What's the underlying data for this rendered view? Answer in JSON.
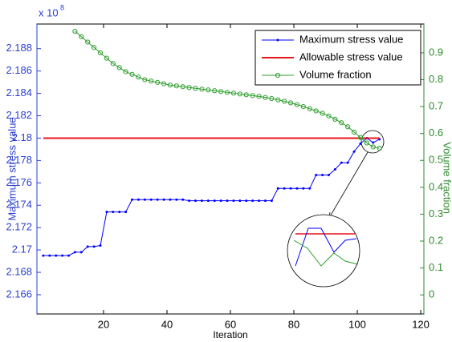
{
  "chart_data": {
    "type": "line",
    "x_label": "Iteration",
    "y_label": "Maximum stress value",
    "y2_label": "Volume fraction",
    "y_exponent_base": "x 10",
    "y_exponent": "8",
    "xlim": [
      -1,
      121
    ],
    "xticks": [
      20,
      40,
      60,
      80,
      100,
      120
    ],
    "ylim": [
      2.16428,
      2.1902
    ],
    "yticks": [
      2.166,
      2.168,
      2.17,
      2.172,
      2.174,
      2.176,
      2.178,
      2.18,
      2.182,
      2.184,
      2.186,
      2.188
    ],
    "y2lim": [
      -0.071,
      1.007
    ],
    "y2ticks": [
      0,
      0.1,
      0.2,
      0.3,
      0.4,
      0.5,
      0.6,
      0.7,
      0.8,
      0.9
    ],
    "y_color": "#2b3fd0",
    "y2_color": "#2e8b2e",
    "legend": "upper right",
    "series": [
      {
        "name": "Maximum stress value",
        "color": "#0000ff",
        "marker": "dot",
        "x": [
          1,
          3,
          5,
          7,
          9,
          11,
          13,
          15,
          17,
          19,
          21,
          23,
          25,
          27,
          29,
          31,
          33,
          35,
          37,
          39,
          41,
          43,
          45,
          47,
          49,
          51,
          53,
          55,
          57,
          59,
          61,
          63,
          65,
          67,
          69,
          71,
          73,
          75,
          77,
          79,
          81,
          83,
          85,
          87,
          89,
          91,
          93,
          95,
          97,
          99,
          101,
          103,
          105,
          107
        ],
        "values": [
          2.1695,
          2.1695,
          2.1695,
          2.1695,
          2.1695,
          2.1698,
          2.1698,
          2.1703,
          2.1703,
          2.1704,
          2.1734,
          2.1734,
          2.1734,
          2.1734,
          2.1745,
          2.1745,
          2.1745,
          2.1745,
          2.1745,
          2.1745,
          2.1745,
          2.1745,
          2.1745,
          2.1744,
          2.1744,
          2.1744,
          2.1744,
          2.1744,
          2.1744,
          2.1744,
          2.1744,
          2.1744,
          2.1744,
          2.1744,
          2.1744,
          2.1744,
          2.1744,
          2.1755,
          2.1755,
          2.1755,
          2.1755,
          2.1755,
          2.1755,
          2.1767,
          2.1767,
          2.1767,
          2.1772,
          2.1778,
          2.1778,
          2.1788,
          2.1795,
          2.18,
          2.1796,
          2.1799
        ]
      },
      {
        "name": "Allowable stress value",
        "color": "#e8141c",
        "marker": "none",
        "x": [
          1,
          107
        ],
        "values": [
          2.18,
          2.18
        ]
      },
      {
        "name": "Volume fraction",
        "color": "#2e9e2e",
        "marker": "circle",
        "axis": "y2",
        "x": [
          1,
          3,
          5,
          7,
          9,
          11,
          13,
          15,
          17,
          19,
          21,
          23,
          25,
          27,
          29,
          31,
          33,
          35,
          37,
          39,
          41,
          43,
          45,
          47,
          49,
          51,
          53,
          55,
          57,
          59,
          61,
          63,
          65,
          67,
          69,
          71,
          73,
          75,
          77,
          79,
          81,
          83,
          85,
          87,
          89,
          91,
          93,
          95,
          97,
          99,
          101,
          103,
          105,
          107
        ],
        "values": [
          null,
          null,
          null,
          null,
          null,
          0.98,
          0.96,
          0.94,
          0.92,
          0.9,
          0.88,
          0.86,
          0.845,
          0.83,
          0.82,
          0.81,
          0.8,
          0.795,
          0.79,
          0.785,
          0.78,
          0.777,
          0.774,
          0.771,
          0.768,
          0.765,
          0.762,
          0.759,
          0.756,
          0.753,
          0.75,
          0.747,
          0.744,
          0.741,
          0.738,
          0.734,
          0.73,
          0.725,
          0.72,
          0.714,
          0.707,
          0.7,
          0.692,
          0.684,
          0.675,
          0.665,
          0.653,
          0.64,
          0.625,
          0.605,
          0.585,
          0.565,
          0.55,
          0.545
        ]
      }
    ]
  }
}
